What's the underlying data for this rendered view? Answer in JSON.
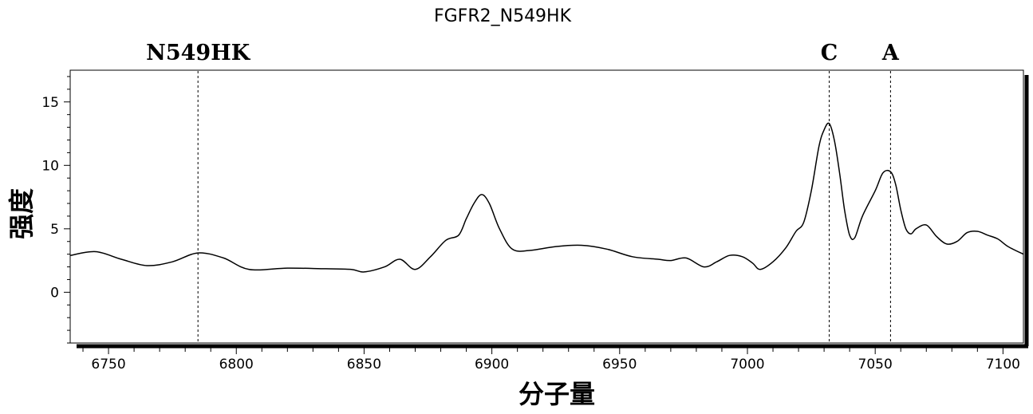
{
  "chart_data": {
    "type": "line",
    "title": "FGFR2_N549HK",
    "xlabel": "分子量",
    "ylabel": "强度",
    "xlim": [
      6735,
      7108
    ],
    "ylim": [
      -4,
      17.5
    ],
    "xticks": [
      6750,
      6800,
      6850,
      6900,
      6950,
      7000,
      7050,
      7100
    ],
    "yticks": [
      0,
      5,
      10,
      15
    ],
    "grid": false,
    "markers": [
      {
        "label": "N549HK",
        "x": 6785
      },
      {
        "label": "C",
        "x": 7032
      },
      {
        "label": "A",
        "x": 7056
      }
    ],
    "series": [
      {
        "x": [
          6735,
          6745,
          6755,
          6765,
          6775,
          6785,
          6795,
          6805,
          6820,
          6835,
          6845,
          6850,
          6858,
          6864,
          6870,
          6876,
          6882,
          6887,
          6890,
          6893,
          6896,
          6899,
          6903,
          6908,
          6915,
          6925,
          6935,
          6945,
          6955,
          6965,
          6970,
          6976,
          6983,
          6988,
          6993,
          6998,
          7002,
          7005,
          7010,
          7015,
          7019,
          7022,
          7025,
          7028,
          7030,
          7032,
          7034,
          7036,
          7038,
          7040,
          7042,
          7045,
          7050,
          7053,
          7056,
          7058,
          7060,
          7062,
          7064,
          7066,
          7070,
          7074,
          7078,
          7082,
          7086,
          7090,
          7094,
          7098,
          7102,
          7108
        ],
        "y": [
          2.9,
          3.2,
          2.6,
          2.1,
          2.4,
          3.1,
          2.7,
          1.8,
          1.9,
          1.85,
          1.8,
          1.6,
          2.0,
          2.6,
          1.8,
          2.8,
          4.1,
          4.5,
          5.8,
          7.0,
          7.7,
          7.0,
          5.0,
          3.4,
          3.3,
          3.6,
          3.7,
          3.4,
          2.8,
          2.6,
          2.5,
          2.7,
          2.0,
          2.4,
          2.9,
          2.8,
          2.3,
          1.8,
          2.4,
          3.5,
          4.8,
          5.5,
          8.0,
          11.5,
          12.8,
          13.3,
          12.0,
          9.5,
          6.5,
          4.5,
          4.3,
          6.0,
          8.0,
          9.4,
          9.5,
          8.5,
          6.5,
          5.0,
          4.6,
          5.0,
          5.3,
          4.4,
          3.8,
          4.0,
          4.7,
          4.8,
          4.5,
          4.2,
          3.6,
          3.0
        ]
      }
    ]
  }
}
